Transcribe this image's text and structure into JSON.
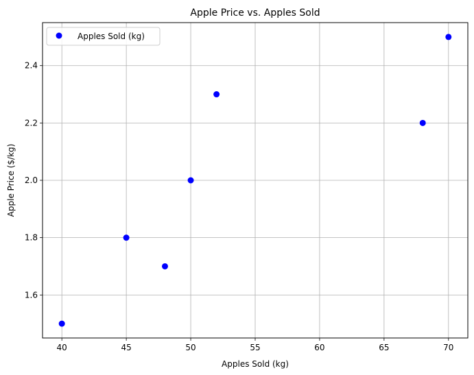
{
  "chart_data": {
    "type": "scatter",
    "title": "Apple Price vs. Apples Sold",
    "xlabel": "Apples Sold (kg)",
    "ylabel": "Apple Price ($/kg)",
    "xlim": [
      38.5,
      71.5
    ],
    "ylim": [
      1.45,
      2.55
    ],
    "xticks": [
      40,
      45,
      50,
      55,
      60,
      65,
      70
    ],
    "yticks": [
      1.6,
      1.8,
      2.0,
      2.2,
      2.4
    ],
    "xtick_labels": [
      "40",
      "45",
      "50",
      "55",
      "60",
      "65",
      "70"
    ],
    "ytick_labels": [
      "1.6",
      "1.8",
      "2.0",
      "2.2",
      "2.4"
    ],
    "grid": true,
    "legend": {
      "position": "top-left",
      "entries": [
        "Apples Sold (kg)"
      ]
    },
    "series": [
      {
        "name": "Apples Sold (kg)",
        "color": "#0000ff",
        "points": [
          {
            "x": 40,
            "y": 1.5
          },
          {
            "x": 45,
            "y": 1.8
          },
          {
            "x": 48,
            "y": 1.7
          },
          {
            "x": 50,
            "y": 2.0
          },
          {
            "x": 52,
            "y": 2.3
          },
          {
            "x": 68,
            "y": 2.2
          },
          {
            "x": 70,
            "y": 2.5
          }
        ]
      }
    ]
  }
}
